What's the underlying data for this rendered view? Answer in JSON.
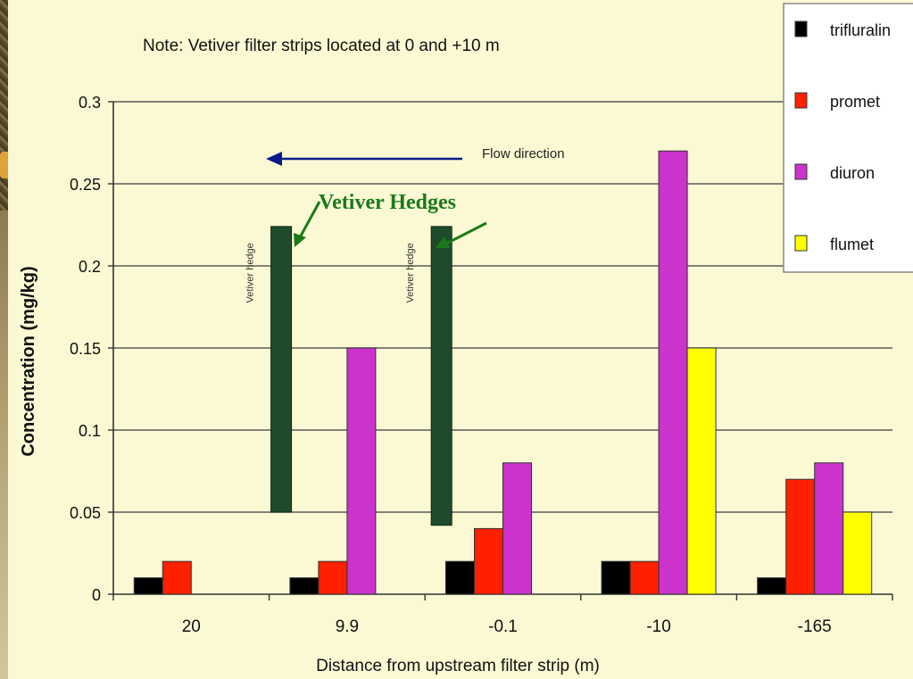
{
  "chart_data": {
    "type": "bar",
    "note": "Note: Vetiver filter strips located at 0 and +10 m",
    "xlabel": "Distance from upstream  filter strip (m)",
    "ylabel": "Concentration (mg/kg)",
    "ylim": [
      0,
      0.3
    ],
    "yticks": [
      "0",
      "0.05",
      "0.1",
      "0.15",
      "0.2",
      "0.25",
      "0.3"
    ],
    "categories": [
      "20",
      "9.9",
      "-0.1",
      "-10",
      "-165"
    ],
    "series": [
      {
        "name": "trifluralin",
        "color": "#000000",
        "values": [
          0.01,
          0.01,
          0.02,
          0.02,
          0.01
        ]
      },
      {
        "name": "promet",
        "color": "#ff2000",
        "values": [
          0.02,
          0.02,
          0.04,
          0.02,
          0.07
        ]
      },
      {
        "name": "diuron",
        "color": "#cc33cc",
        "values": [
          0,
          0.15,
          0.08,
          0.27,
          0.08
        ]
      },
      {
        "name": "flumet",
        "color": "#ffff00",
        "values": [
          0,
          0,
          0,
          0.15,
          0.05
        ]
      }
    ],
    "grid": true,
    "legend": "top-right",
    "annotations": {
      "flow_direction": "Flow direction",
      "hedge_label": "Vetiver hedge",
      "hedges_callout": "Vetiver Hedges"
    },
    "hedges": [
      {
        "label": "Vetiver hedge",
        "x_between": [
          "20",
          "9.9"
        ],
        "y_range": [
          0.05,
          0.224
        ]
      },
      {
        "label": "Vetiver hedge",
        "x_between": [
          "9.9",
          "-0.1"
        ],
        "y_range": [
          0.042,
          0.224
        ]
      }
    ],
    "colors": {
      "hedge": "#1f4a2c",
      "arrow": "#0a1a8a",
      "callout": "#1a7a1a",
      "background": "#fbf9d4"
    }
  }
}
